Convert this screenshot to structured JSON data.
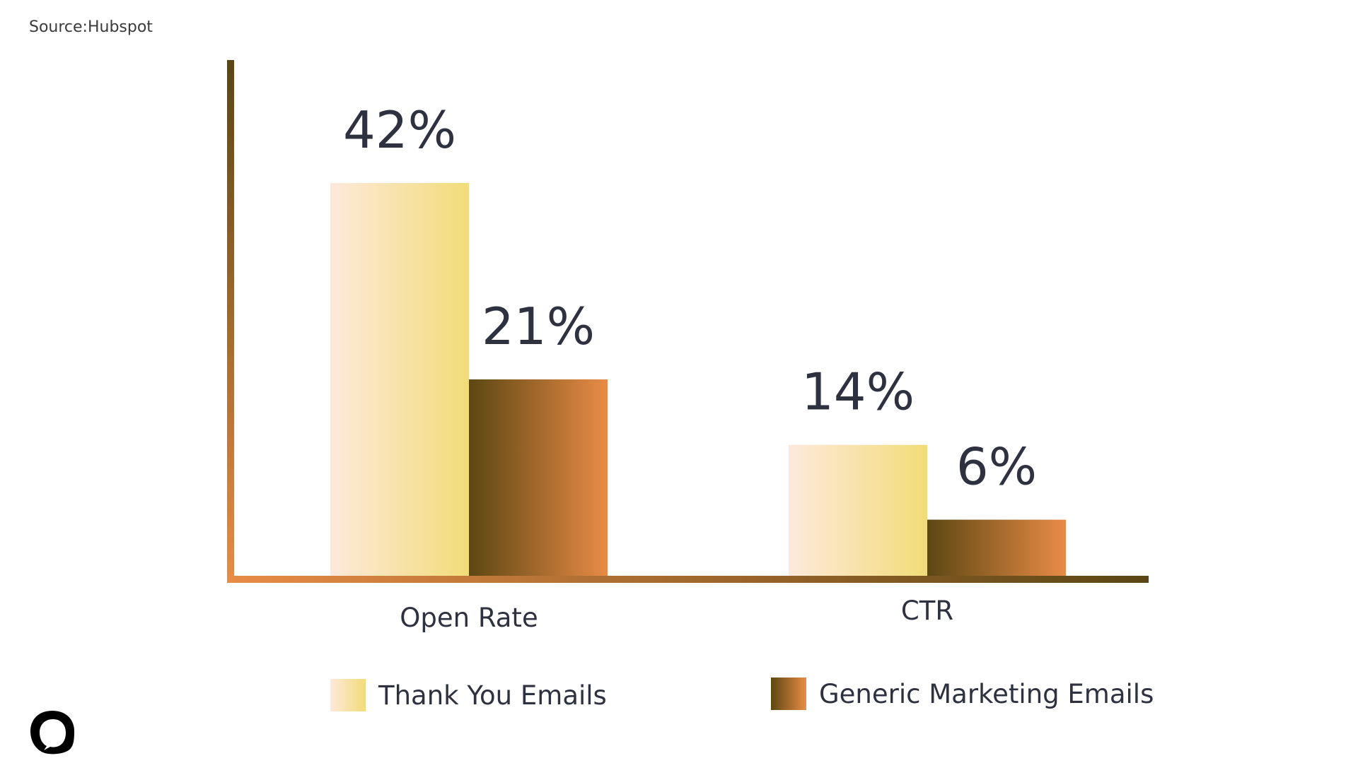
{
  "source_text": "Source:Hubspot",
  "colors": {
    "series1_light": "#fde9dc",
    "series1_dark": "#f2dc78",
    "series2_dark": "#5c4712",
    "series2_light": "#e98b46",
    "axis_dark": "#5a4614",
    "axis_light": "#e88c47",
    "label_text": "#2e3140"
  },
  "logo": {
    "icon": "speech-bubble-logo-icon"
  },
  "chart_data": {
    "type": "bar",
    "categories": [
      "Open Rate",
      "CTR"
    ],
    "series": [
      {
        "name": "Thank You Emails",
        "values": [
          42,
          14
        ],
        "labels": [
          "42%",
          "14%"
        ]
      },
      {
        "name": "Generic Marketing Emails",
        "values": [
          21,
          6
        ],
        "labels": [
          "21%",
          "6%"
        ]
      }
    ],
    "ylim": [
      0,
      55
    ],
    "yaxis_ticks": false,
    "grid": false,
    "legend": "bottom",
    "title": "",
    "xlabel": "",
    "ylabel": ""
  }
}
